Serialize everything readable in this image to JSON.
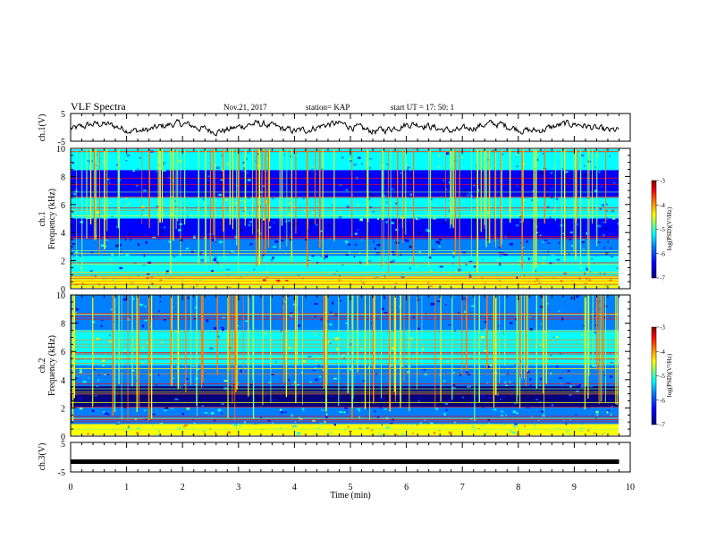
{
  "header": {
    "title": "VLF Spectra",
    "date": "Nov.21, 2017",
    "station": "station= KAP",
    "start": "start UT =  17: 50: 1"
  },
  "chart_data": [
    {
      "type": "line",
      "ylabel": "ch.1(V)",
      "ylim": [
        -5,
        5
      ],
      "yticks": [
        "5",
        "-5"
      ],
      "x_range_min": [
        0,
        9.8
      ],
      "series": [
        {
          "noise_amplitude_V": 1.3
        }
      ]
    },
    {
      "type": "heatmap",
      "ylabel_channel": "ch.1",
      "ylabel": "Frequency (kHz)",
      "ylim": [
        0,
        10
      ],
      "yticks": [
        "0",
        "2",
        "4",
        "6",
        "8",
        "10"
      ],
      "x_range_min": [
        0,
        9.8
      ],
      "colorbar": {
        "label": "log(PSD)(V²/Hz)",
        "range": [
          -7,
          -3
        ],
        "ticks": [
          "-3",
          "-4",
          "-5",
          "-6",
          "-7"
        ]
      },
      "bands_kHz": [
        {
          "from": 0,
          "to": 0.8,
          "level": -4.4
        },
        {
          "from": 0.8,
          "to": 2.3,
          "level": -5.7
        },
        {
          "from": 2.3,
          "to": 3.5,
          "level": -6.2
        },
        {
          "from": 3.5,
          "to": 5.0,
          "level": -6.4
        },
        {
          "from": 5.0,
          "to": 6.5,
          "level": -5.4
        },
        {
          "from": 6.5,
          "to": 8.5,
          "level": -6.4
        },
        {
          "from": 8.5,
          "to": 10,
          "level": -5.6
        }
      ]
    },
    {
      "type": "heatmap",
      "ylabel_channel": "ch.2",
      "ylabel": "Frequency (kHz)",
      "ylim": [
        0,
        10
      ],
      "yticks": [
        "0",
        "2",
        "4",
        "6",
        "8",
        "10"
      ],
      "x_range_min": [
        0,
        9.8
      ],
      "colorbar": {
        "label": "log(PSD)(V²/Hz)",
        "range": [
          -7,
          -3
        ],
        "ticks": [
          "-3",
          "-4",
          "-5",
          "-6",
          "-7"
        ]
      },
      "bands_kHz": [
        {
          "from": 0,
          "to": 0.8,
          "level": -4.6
        },
        {
          "from": 0.8,
          "to": 2.0,
          "level": -5.8
        },
        {
          "from": 2.0,
          "to": 3.5,
          "level": -6.8
        },
        {
          "from": 3.5,
          "to": 5.0,
          "level": -5.9
        },
        {
          "from": 5.0,
          "to": 7.5,
          "level": -5.3
        },
        {
          "from": 7.5,
          "to": 10,
          "level": -6.1
        }
      ]
    },
    {
      "type": "line",
      "ylabel": "ch.3(V)",
      "ylim": [
        -5,
        5
      ],
      "yticks": [
        "5",
        "-5"
      ],
      "x_range_min": [
        0,
        9.8
      ],
      "series": [
        {
          "constant_V": -1.5
        }
      ]
    }
  ],
  "xaxis": {
    "label": "Time (min)",
    "range": [
      0,
      10
    ],
    "ticks": [
      "0",
      "1",
      "2",
      "3",
      "4",
      "5",
      "6",
      "7",
      "8",
      "9",
      "10"
    ]
  },
  "colors": {
    "colormap": [
      "#00007f",
      "#0000ff",
      "#007fff",
      "#00ffff",
      "#7fff7f",
      "#ffff00",
      "#ff7f00",
      "#ff0000",
      "#7f0000"
    ]
  }
}
